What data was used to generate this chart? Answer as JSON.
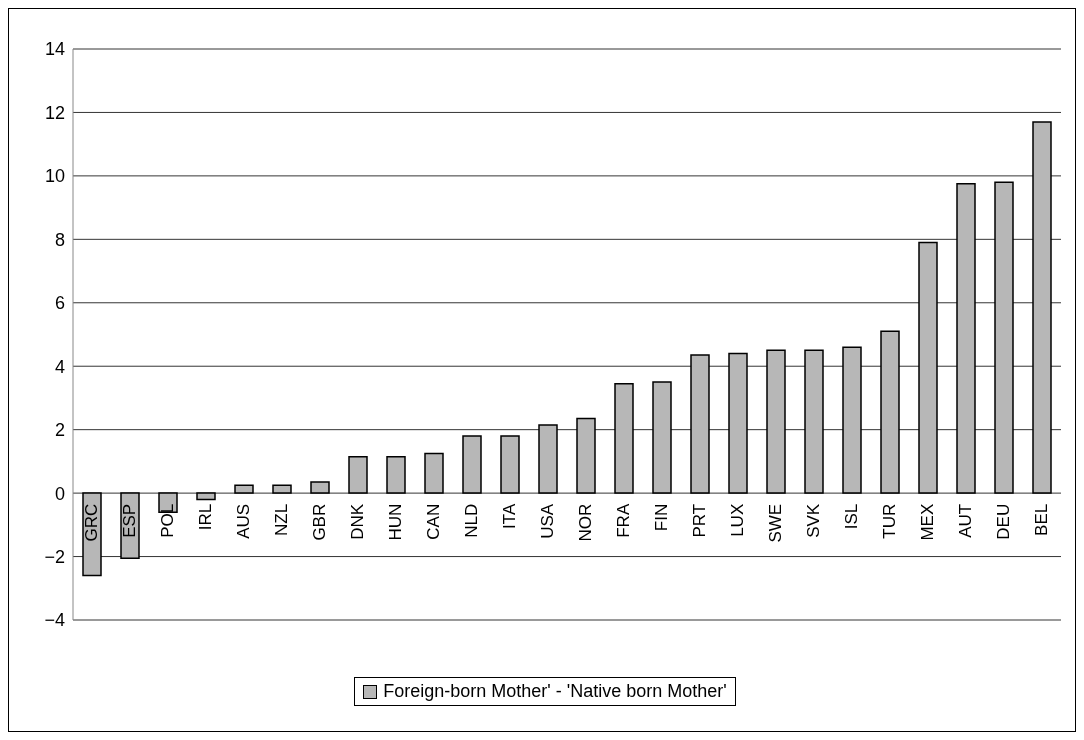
{
  "chart_data": {
    "type": "bar",
    "categories": [
      "GRC",
      "ESP",
      "POL",
      "IRL",
      "AUS",
      "NZL",
      "GBR",
      "DNK",
      "HUN",
      "CAN",
      "NLD",
      "ITA",
      "USA",
      "NOR",
      "FRA",
      "FIN",
      "PRT",
      "LUX",
      "SWE",
      "SVK",
      "ISL",
      "TUR",
      "MEX",
      "AUT",
      "DEU",
      "BEL"
    ],
    "series": [
      {
        "name": "Foreign-born Mother' - 'Native born Mother'",
        "color": "#b7b7b7",
        "values": [
          -2.6,
          -2.05,
          -0.6,
          -0.2,
          0.25,
          0.25,
          0.35,
          1.15,
          1.15,
          1.25,
          1.8,
          1.8,
          2.15,
          2.35,
          3.45,
          3.5,
          4.35,
          4.4,
          4.5,
          4.5,
          4.6,
          5.1,
          7.9,
          9.75,
          9.8,
          11.7
        ]
      }
    ],
    "ylim": [
      -4,
      14
    ],
    "yticks": [
      -4,
      -2,
      0,
      2,
      4,
      6,
      8,
      10,
      12,
      14
    ],
    "grid": "y",
    "legend": "bottom"
  }
}
